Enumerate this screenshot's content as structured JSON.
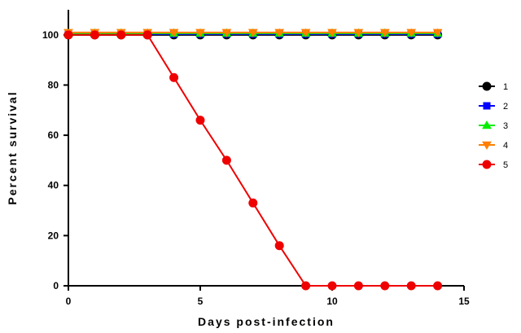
{
  "chart_data": {
    "type": "line",
    "title": "",
    "xlabel": "Days post-infection",
    "ylabel": "Percent survival",
    "xlim": [
      0,
      15
    ],
    "ylim": [
      0,
      110
    ],
    "xticks": [
      0,
      5,
      10,
      15
    ],
    "yticks": [
      0,
      20,
      40,
      60,
      80,
      100
    ],
    "grid": false,
    "legend_position": "right",
    "series": [
      {
        "name": "1",
        "color": "#000000",
        "marker": "circle",
        "x": [
          0,
          1,
          2,
          3,
          4,
          5,
          6,
          7,
          8,
          9,
          10,
          11,
          12,
          13,
          14
        ],
        "y": [
          100,
          100,
          100,
          100,
          100,
          100,
          100,
          100,
          100,
          100,
          100,
          100,
          100,
          100,
          100
        ]
      },
      {
        "name": "2",
        "color": "#0000ff",
        "marker": "square",
        "x": [
          0,
          1,
          2,
          3,
          4,
          5,
          6,
          7,
          8,
          9,
          10,
          11,
          12,
          13,
          14
        ],
        "y": [
          100,
          100,
          100,
          100,
          100,
          100,
          100,
          100,
          100,
          100,
          100,
          100,
          100,
          100,
          100
        ]
      },
      {
        "name": "3",
        "color": "#00ee00",
        "marker": "triangle-up",
        "x": [
          0,
          1,
          2,
          3,
          4,
          5,
          6,
          7,
          8,
          9,
          10,
          11,
          12,
          13,
          14
        ],
        "y": [
          100,
          100,
          100,
          100,
          100,
          100,
          100,
          100,
          100,
          100,
          100,
          100,
          100,
          100,
          100
        ]
      },
      {
        "name": "4",
        "color": "#ff7f00",
        "marker": "triangle-down",
        "x": [
          0,
          1,
          2,
          3,
          4,
          5,
          6,
          7,
          8,
          9,
          10,
          11,
          12,
          13,
          14
        ],
        "y": [
          100,
          100,
          100,
          100,
          100,
          100,
          100,
          100,
          100,
          100,
          100,
          100,
          100,
          100,
          100
        ]
      },
      {
        "name": "5",
        "color": "#ee0000",
        "marker": "circle",
        "x": [
          0,
          1,
          2,
          3,
          4,
          5,
          6,
          7,
          8,
          9,
          10,
          11,
          12,
          13,
          14
        ],
        "y": [
          100,
          100,
          100,
          100,
          83,
          66,
          50,
          33,
          16,
          0,
          0,
          0,
          0,
          0,
          0
        ]
      }
    ]
  }
}
